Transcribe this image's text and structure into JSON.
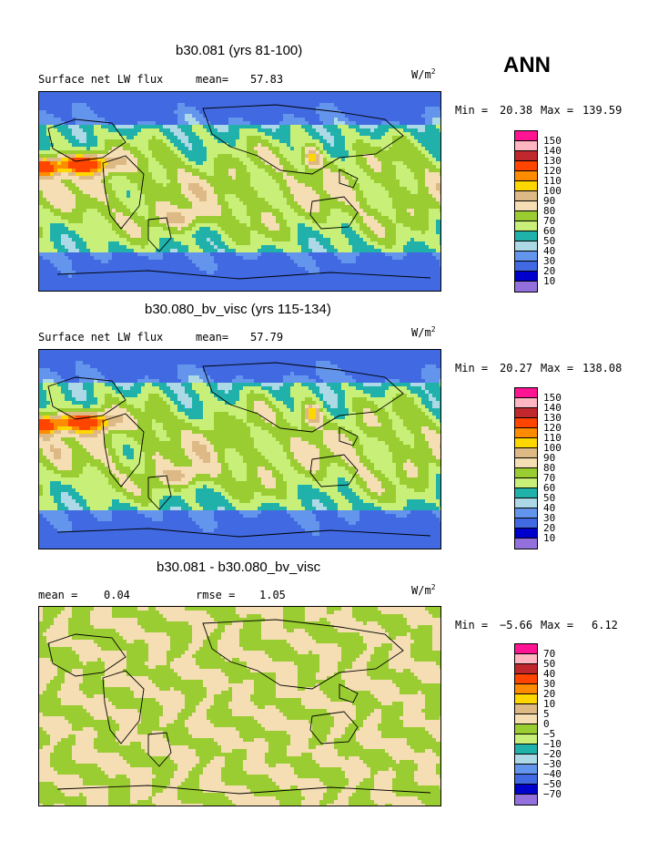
{
  "season": "ANN",
  "panels": [
    {
      "title": "b30.081 (yrs 81-100)",
      "left_label": "Surface net LW flux",
      "mid_label": "mean=",
      "mid_value": "57.83",
      "units_base": "W/m",
      "units_exp": "2",
      "min_label": "Min =",
      "min_value": "20.38",
      "max_label": "Max =",
      "max_value": "139.59",
      "legend_labels": [
        "150",
        "140",
        "130",
        "120",
        "110",
        "100",
        "90",
        "80",
        "70",
        "60",
        "50",
        "40",
        "30",
        "20",
        "10"
      ],
      "legend_colors": [
        "#ff1493",
        "#ffb6c1",
        "#c0282d",
        "#ff4500",
        "#ff8c00",
        "#ffd700",
        "#dcb985",
        "#f5deb3",
        "#9acd32",
        "#c8f078",
        "#20b2aa",
        "#add8e6",
        "#6495ed",
        "#4169e1",
        "#0000cd",
        "#9370db"
      ],
      "field_colors": [
        "#4169e1",
        "#6495ed",
        "#add8e6",
        "#20b2aa",
        "#c8f078",
        "#9acd32",
        "#f5deb3",
        "#dcb985",
        "#ffd700",
        "#ff8c00",
        "#ff4500"
      ]
    },
    {
      "title": "b30.080_bv_visc (yrs 115-134)",
      "left_label": "Surface net LW flux",
      "mid_label": "mean=",
      "mid_value": "57.79",
      "units_base": "W/m",
      "units_exp": "2",
      "min_label": "Min =",
      "min_value": "20.27",
      "max_label": "Max =",
      "max_value": "138.08",
      "legend_labels": [
        "150",
        "140",
        "130",
        "120",
        "110",
        "100",
        "90",
        "80",
        "70",
        "60",
        "50",
        "40",
        "30",
        "20",
        "10"
      ],
      "legend_colors": [
        "#ff1493",
        "#ffb6c1",
        "#c0282d",
        "#ff4500",
        "#ff8c00",
        "#ffd700",
        "#dcb985",
        "#f5deb3",
        "#9acd32",
        "#c8f078",
        "#20b2aa",
        "#add8e6",
        "#6495ed",
        "#4169e1",
        "#0000cd",
        "#9370db"
      ],
      "field_colors": [
        "#4169e1",
        "#6495ed",
        "#add8e6",
        "#20b2aa",
        "#c8f078",
        "#9acd32",
        "#f5deb3",
        "#dcb985",
        "#ffd700",
        "#ff8c00",
        "#ff4500"
      ]
    },
    {
      "title": "b30.081 - b30.080_bv_visc",
      "left_label": "mean =",
      "left_value": "0.04",
      "mid_label": "rmse =",
      "mid_value": "1.05",
      "units_base": "W/m",
      "units_exp": "2",
      "min_label": "Min =",
      "min_value": "−5.66",
      "max_label": "Max =",
      "max_value": "6.12",
      "legend_labels": [
        "70",
        "50",
        "40",
        "30",
        "20",
        "10",
        "5",
        "0",
        "−5",
        "−10",
        "−20",
        "−30",
        "−40",
        "−50",
        "−70"
      ],
      "legend_colors": [
        "#ff1493",
        "#ffb6c1",
        "#c0282d",
        "#ff4500",
        "#ff8c00",
        "#ffd700",
        "#dcb985",
        "#f5deb3",
        "#9acd32",
        "#c8f078",
        "#20b2aa",
        "#add8e6",
        "#6495ed",
        "#4169e1",
        "#0000cd",
        "#9370db"
      ],
      "field_colors": [
        "#f5deb3",
        "#9acd32"
      ]
    }
  ]
}
